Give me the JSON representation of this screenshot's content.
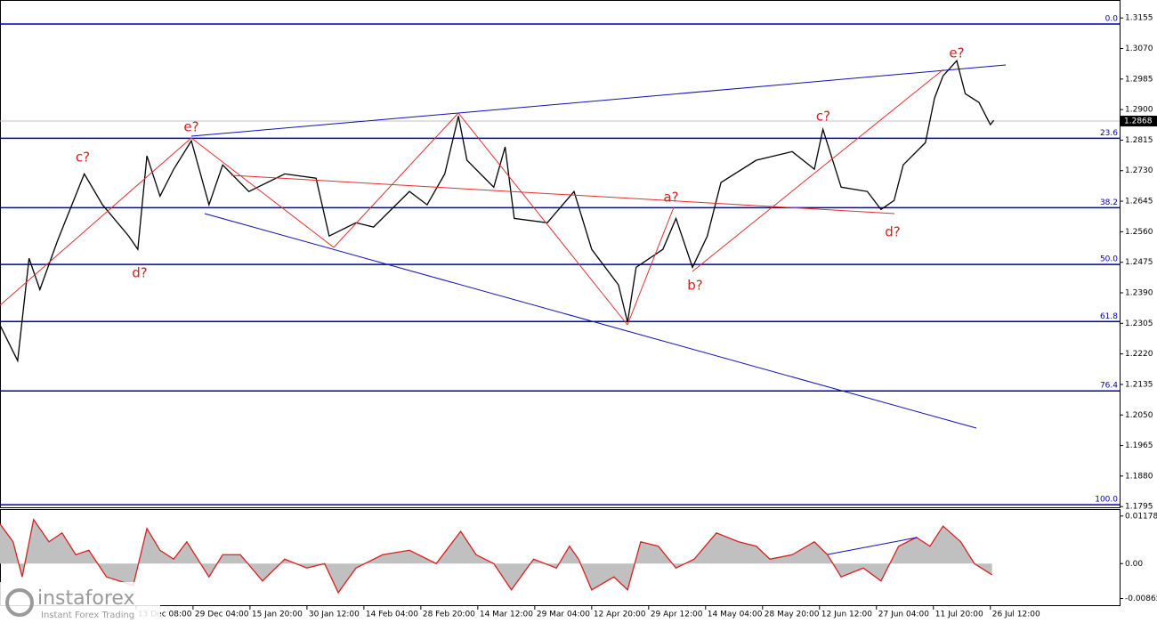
{
  "chart_data": [
    {
      "type": "line",
      "xlim": [
        -2.39,
        17.27
      ],
      "ylim": [
        1.1793,
        1.3205
      ],
      "xticks": [
        {
          "value": 0,
          "label": "13 Dec 08:00"
        },
        {
          "value": 1,
          "label": "29 Dec 04:00"
        },
        {
          "value": 2,
          "label": "15 Jan 20:00"
        },
        {
          "value": 3,
          "label": "30 Jan 12:00"
        },
        {
          "value": 4,
          "label": "14 Feb 04:00"
        },
        {
          "value": 5,
          "label": "28 Feb 20:00"
        },
        {
          "value": 6,
          "label": "14 Mar 12:00"
        },
        {
          "value": 7,
          "label": "29 Mar 04:00"
        },
        {
          "value": 8,
          "label": "12 Apr 20:00"
        },
        {
          "value": 9,
          "label": "29 Apr 12:00"
        },
        {
          "value": 10,
          "label": "14 May 04:00"
        },
        {
          "value": 11,
          "label": "28 May 20:00"
        },
        {
          "value": 12,
          "label": "12 Jun 12:00"
        },
        {
          "value": 13,
          "label": "27 Jun 04:00"
        },
        {
          "value": 14,
          "label": "11 Jul 20:00"
        },
        {
          "value": 15,
          "label": "26 Jul 12:00"
        }
      ],
      "yticks": [
        1.3155,
        {
          "value": 1.307,
          "label": "1.3070"
        },
        1.2985,
        {
          "value": 1.29,
          "label": "1.2900"
        },
        1.2815,
        {
          "value": 1.273,
          "label": "1.2730"
        },
        1.2645,
        {
          "value": 1.256,
          "label": "1.2560"
        },
        1.2475,
        {
          "value": 1.239,
          "label": "1.2390"
        },
        1.2305,
        {
          "value": 1.222,
          "label": "1.2220"
        },
        1.2135,
        {
          "value": 1.205,
          "label": "1.2050"
        },
        1.1965,
        {
          "value": 1.188,
          "label": "1.1880"
        },
        1.1795
      ],
      "x": [
        -2.39,
        -2.08,
        -1.88,
        -1.69,
        -1.38,
        -0.91,
        -0.59,
        -0.13,
        0.03,
        0.19,
        0.42,
        0.66,
        0.97,
        1.28,
        1.52,
        1.98,
        2.61,
        3.16,
        3.39,
        3.86,
        4.17,
        4.8,
        5.11,
        5.42,
        5.66,
        5.81,
        6.28,
        6.48,
        6.64,
        7.22,
        7.69,
        8.0,
        8.47,
        8.63,
        8.78,
        9.25,
        9.48,
        9.77,
        10.03,
        10.27,
        10.89,
        11.52,
        11.91,
        12.06,
        12.38,
        12.84,
        13.08,
        13.31,
        13.47,
        13.86,
        14.02,
        14.17,
        14.41,
        14.56,
        14.8,
        15.0,
        15.06
      ],
      "series": [
        {
          "color": "#000000",
          "values": [
            1.23,
            1.2201,
            1.2486,
            1.2399,
            1.2535,
            1.2721,
            1.2635,
            1.2548,
            1.2511,
            1.2771,
            1.2659,
            1.2734,
            1.2813,
            1.2635,
            1.2746,
            1.2672,
            1.2721,
            1.2709,
            1.2548,
            1.2585,
            1.2573,
            1.2672,
            1.2635,
            1.2721,
            1.2882,
            1.2759,
            1.2684,
            1.2796,
            1.2597,
            1.2585,
            1.2672,
            1.2511,
            1.2412,
            1.2308,
            1.2461,
            1.2511,
            1.2597,
            1.2461,
            1.2548,
            1.2697,
            1.2759,
            1.2783,
            1.2734,
            1.2845,
            1.2684,
            1.2672,
            1.2622,
            1.2647,
            1.2746,
            1.2808,
            1.2932,
            1.2994,
            1.3036,
            1.2944,
            1.292,
            1.2858,
            1.287
          ]
        }
      ],
      "current_price": 1.2868,
      "levels": [
        {
          "label": "0.0",
          "value": 1.3138
        },
        {
          "label": "23.6",
          "value": 1.282
        },
        {
          "label": "38.2",
          "value": 1.2627
        },
        {
          "label": "50.0",
          "value": 1.2469
        },
        {
          "label": "61.8",
          "value": 1.231
        },
        {
          "label": "76.4",
          "value": 1.2117
        },
        {
          "label": "100.0",
          "value": 1.18
        }
      ],
      "level_color": "#0000b0",
      "annotations": [
        "c?",
        "d?",
        "e?",
        "a?",
        "b?",
        "c?",
        "d?",
        "e?"
      ]
    },
    {
      "type": "area",
      "xlim": [
        -2.39,
        17.27
      ],
      "ylim": [
        -0.0103,
        0.0135
      ],
      "yticks": [
        0.01178,
        {
          "value": 0,
          "label": "0.00"
        },
        -0.00865
      ],
      "x": [
        -2.39,
        -2.16,
        -2.0,
        -1.8,
        -1.53,
        -1.3,
        -1.06,
        -0.83,
        -0.52,
        -0.05,
        0.19,
        0.42,
        0.66,
        0.89,
        1.28,
        1.52,
        1.83,
        2.22,
        2.61,
        3.0,
        3.31,
        3.55,
        3.86,
        4.33,
        4.8,
        5.27,
        5.7,
        5.97,
        6.28,
        6.59,
        6.98,
        7.38,
        7.61,
        7.77,
        8.0,
        8.39,
        8.63,
        8.86,
        9.17,
        9.48,
        9.8,
        10.19,
        10.58,
        10.89,
        11.13,
        11.52,
        11.91,
        12.14,
        12.38,
        12.77,
        13.08,
        13.39,
        13.7,
        13.94,
        14.17,
        14.48,
        14.72,
        15.03
      ],
      "series": [
        {
          "color": "#d62020",
          "fill": "#c0c0c0",
          "values": [
            0.0098,
            0.0054,
            -0.0033,
            0.0109,
            0.0054,
            0.0076,
            0.0022,
            0.0033,
            -0.0033,
            -0.0054,
            0.0087,
            0.0033,
            0.0011,
            0.0054,
            -0.0033,
            0.0022,
            0.0022,
            -0.0043,
            0.0011,
            -0.0011,
            0,
            -0.0072,
            -0.0011,
            0.0022,
            0.0033,
            0,
            0.008,
            0.0022,
            0,
            -0.0065,
            0.0011,
            -0.0011,
            0.0043,
            0.0011,
            -0.0065,
            -0.0033,
            -0.0065,
            0.0054,
            0.0043,
            -0.0011,
            0.0011,
            0.0076,
            0.0054,
            0.0043,
            0.0011,
            0.0022,
            0.0054,
            0.0022,
            -0.0033,
            -0.0011,
            -0.0043,
            0.0043,
            0.0065,
            0.0043,
            0.0093,
            0.0054,
            0,
            -0.0028
          ]
        }
      ]
    }
  ],
  "watermark": {
    "brand": "instaforex",
    "tagline": "Instant Forex Trading"
  }
}
